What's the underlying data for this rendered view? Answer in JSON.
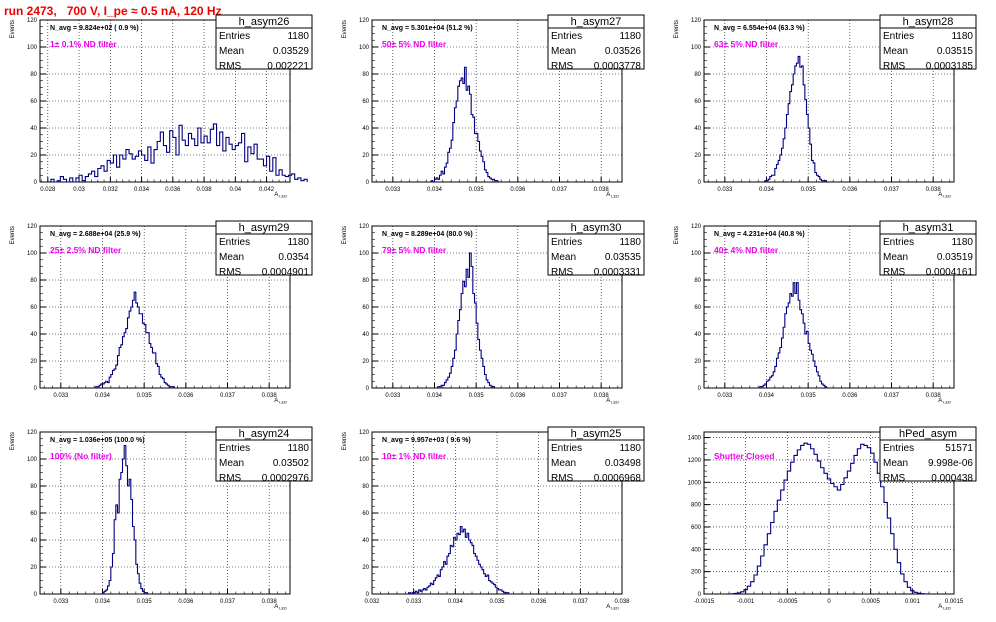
{
  "title": "run 2473,   700 V, I_pe ≈ 0.5 nA, 120 Hz",
  "stats_labels": {
    "entries": "Entries",
    "mean": "Mean",
    "rms": "RMS"
  },
  "chart_data": [
    {
      "type": "histogram",
      "name": "h_asym26",
      "stats": {
        "entries": "1180",
        "mean": "0.03529",
        "rms": "0.002221"
      },
      "navg": "N_avg = 9.824e+02 ( 0.9 %)",
      "filter": "1± 0.1% ND filter",
      "xlabel": "A_LED",
      "ylabel": "Events",
      "xlim": [
        0.0275,
        0.0435
      ],
      "ylim": [
        0,
        120
      ],
      "xticks": [
        "0.028",
        "0.03",
        "0.032",
        "0.034",
        "0.036",
        "0.038",
        "0.04",
        "0.042"
      ],
      "xtick_values": [
        0.028,
        0.03,
        0.032,
        0.034,
        0.036,
        0.038,
        0.04,
        0.042
      ],
      "yticks": [
        0,
        20,
        40,
        60,
        80,
        100,
        120
      ],
      "x_start": 0.0282,
      "bin_width": 0.0002,
      "values": [
        2,
        0,
        1,
        4,
        2,
        0,
        3,
        0,
        3,
        5,
        1,
        4,
        6,
        8,
        4,
        10,
        12,
        8,
        16,
        14,
        20,
        11,
        20,
        17,
        24,
        21,
        17,
        19,
        23,
        20,
        16,
        26,
        14,
        24,
        30,
        37,
        27,
        22,
        38,
        33,
        20,
        42,
        31,
        27,
        36,
        32,
        27,
        40,
        29,
        34,
        29,
        39,
        43,
        27,
        37,
        23,
        33,
        28,
        24,
        27,
        29,
        36,
        15,
        26,
        21,
        28,
        17,
        17,
        12,
        19,
        8,
        18,
        5,
        9,
        5,
        4,
        5,
        6,
        2,
        3,
        1,
        2
      ]
    },
    {
      "type": "histogram",
      "name": "h_asym27",
      "stats": {
        "entries": "1180",
        "mean": "0.03526",
        "rms": "0.0003778"
      },
      "navg": "N_avg = 5.301e+04 (51.2 %)",
      "filter": "50± 5% ND filter",
      "xlabel": "A_LED",
      "ylabel": "Events",
      "xlim": [
        0.0325,
        0.0385
      ],
      "ylim": [
        0,
        120
      ],
      "xticks": [
        "0.033",
        "0.034",
        "0.035",
        "0.036",
        "0.037",
        "0.038"
      ],
      "xtick_values": [
        0.033,
        0.034,
        0.035,
        0.036,
        0.037,
        0.038
      ],
      "yticks": [
        0,
        20,
        40,
        60,
        80,
        100,
        120
      ],
      "x_start": 0.03392,
      "bin_width": 4e-05,
      "values": [
        1,
        0,
        2,
        3,
        2,
        5,
        8,
        6,
        11,
        14,
        22,
        25,
        31,
        44,
        55,
        60,
        71,
        75,
        77,
        73,
        85,
        68,
        71,
        65,
        50,
        48,
        36,
        36,
        30,
        23,
        19,
        15,
        9,
        7,
        4,
        3,
        2,
        2,
        1,
        1
      ]
    },
    {
      "type": "histogram",
      "name": "h_asym28",
      "stats": {
        "entries": "1180",
        "mean": "0.03515",
        "rms": "0.0003185"
      },
      "navg": "N_avg = 6.554e+04 (63.3 %)",
      "filter": "63± 5% ND filter",
      "xlabel": "A_LED",
      "ylabel": "Events",
      "xlim": [
        0.0325,
        0.0385
      ],
      "ylim": [
        0,
        120
      ],
      "xticks": [
        "0.033",
        "0.034",
        "0.035",
        "0.036",
        "0.037",
        "0.038"
      ],
      "xtick_values": [
        0.033,
        0.034,
        0.035,
        0.036,
        0.037,
        0.038
      ],
      "yticks": [
        0,
        20,
        40,
        60,
        80,
        100,
        120
      ],
      "x_start": 0.03396,
      "bin_width": 4e-05,
      "values": [
        1,
        1,
        2,
        4,
        5,
        5,
        10,
        13,
        16,
        20,
        25,
        32,
        40,
        50,
        58,
        67,
        72,
        80,
        86,
        88,
        93,
        85,
        86,
        72,
        61,
        50,
        40,
        28,
        16,
        14,
        7,
        5,
        4,
        2,
        1,
        1,
        1
      ]
    },
    {
      "type": "histogram",
      "name": "h_asym29",
      "stats": {
        "entries": "1180",
        "mean": "0.0354",
        "rms": "0.0004901"
      },
      "navg": "N_avg = 2.688e+04 (25.9 %)",
      "filter": "25± 2.5% ND filter",
      "xlabel": "A_LED",
      "ylabel": "Events",
      "xlim": [
        0.0325,
        0.0385
      ],
      "ylim": [
        0,
        120
      ],
      "xticks": [
        "0.033",
        "0.034",
        "0.035",
        "0.036",
        "0.037",
        "0.038"
      ],
      "xtick_values": [
        0.033,
        0.034,
        0.035,
        0.036,
        0.037,
        0.038
      ],
      "yticks": [
        0,
        20,
        40,
        60,
        80,
        100,
        120
      ],
      "x_start": 0.03384,
      "bin_width": 4e-05,
      "values": [
        1,
        1,
        2,
        3,
        3,
        4,
        5,
        4,
        8,
        10,
        13,
        14,
        17,
        24,
        30,
        32,
        38,
        41,
        44,
        52,
        57,
        60,
        65,
        71,
        63,
        60,
        55,
        55,
        48,
        47,
        41,
        41,
        33,
        30,
        26,
        26,
        18,
        16,
        10,
        8,
        7,
        4,
        3,
        2,
        1,
        1,
        1
      ]
    },
    {
      "type": "histogram",
      "name": "h_asym30",
      "stats": {
        "entries": "1180",
        "mean": "0.03535",
        "rms": "0.0003331"
      },
      "navg": "N_avg = 8.289e+04 (80.0 %)",
      "filter": "79± 5% ND filter",
      "xlabel": "A_LED",
      "ylabel": "Events",
      "xlim": [
        0.0325,
        0.0385
      ],
      "ylim": [
        0,
        120
      ],
      "xticks": [
        "0.033",
        "0.034",
        "0.035",
        "0.036",
        "0.037",
        "0.038"
      ],
      "xtick_values": [
        0.033,
        0.034,
        0.035,
        0.036,
        0.037,
        0.038
      ],
      "yticks": [
        0,
        20,
        40,
        60,
        80,
        100,
        120
      ],
      "x_start": 0.03408,
      "bin_width": 4e-05,
      "values": [
        1,
        1,
        2,
        2,
        4,
        6,
        8,
        11,
        16,
        22,
        28,
        40,
        50,
        58,
        70,
        79,
        75,
        88,
        82,
        100,
        90,
        70,
        63,
        48,
        36,
        28,
        22,
        16,
        10,
        6,
        4,
        2,
        1,
        1
      ]
    },
    {
      "type": "histogram",
      "name": "h_asym31",
      "stats": {
        "entries": "1180",
        "mean": "0.03519",
        "rms": "0.0004161"
      },
      "navg": "N_avg = 4.231e+04 (40.8 %)",
      "filter": "40± 4% ND filter",
      "xlabel": "A_LED",
      "ylabel": "Events",
      "xlim": [
        0.0325,
        0.0385
      ],
      "ylim": [
        0,
        120
      ],
      "xticks": [
        "0.033",
        "0.034",
        "0.035",
        "0.036",
        "0.037",
        "0.038"
      ],
      "xtick_values": [
        0.033,
        0.034,
        0.035,
        0.036,
        0.037,
        0.038
      ],
      "yticks": [
        0,
        20,
        40,
        60,
        80,
        100,
        120
      ],
      "x_start": 0.03384,
      "bin_width": 4e-05,
      "values": [
        1,
        1,
        2,
        3,
        5,
        6,
        8,
        9,
        12,
        16,
        22,
        26,
        30,
        37,
        45,
        55,
        60,
        63,
        70,
        68,
        78,
        70,
        78,
        65,
        58,
        55,
        48,
        40,
        42,
        33,
        28,
        25,
        20,
        16,
        12,
        9,
        5,
        3,
        2,
        1
      ]
    },
    {
      "type": "histogram",
      "name": "h_asym24",
      "stats": {
        "entries": "1180",
        "mean": "0.03502",
        "rms": "0.0002976"
      },
      "navg": "N_avg = 1.036e+05 (100.0 %)",
      "filter": "100% (No filter)",
      "xlabel": "A_LED",
      "ylabel": "Events",
      "xlim": [
        0.0325,
        0.0385
      ],
      "ylim": [
        0,
        120
      ],
      "xticks": [
        "0.033",
        "0.034",
        "0.035",
        "0.036",
        "0.037",
        "0.038"
      ],
      "xtick_values": [
        0.033,
        0.034,
        0.035,
        0.036,
        0.037,
        0.038
      ],
      "yticks": [
        0,
        20,
        40,
        60,
        80,
        100,
        120
      ],
      "x_start": 0.034,
      "bin_width": 4e-05,
      "values": [
        1,
        2,
        3,
        6,
        10,
        20,
        30,
        55,
        66,
        60,
        85,
        90,
        100,
        110,
        95,
        80,
        85,
        70,
        50,
        40,
        22,
        15,
        8,
        4,
        2,
        1,
        1
      ]
    },
    {
      "type": "histogram",
      "name": "h_asym25",
      "stats": {
        "entries": "1180",
        "mean": "0.03498",
        "rms": "0.0006968"
      },
      "navg": "N_avg = 9.957e+03 ( 9.6 %)",
      "filter": "10± 1% ND filter",
      "xlabel": "A_LED",
      "ylabel": "Events",
      "xlim": [
        0.032,
        0.038
      ],
      "ylim": [
        0,
        120
      ],
      "xticks": [
        "0.032",
        "0.033",
        "0.034",
        "0.035",
        "0.036",
        "0.037",
        "0.038"
      ],
      "xtick_values": [
        0.032,
        0.033,
        0.034,
        0.035,
        0.036,
        0.037,
        0.038
      ],
      "yticks": [
        0,
        20,
        40,
        60,
        80,
        100,
        120
      ],
      "x_start": 0.03288,
      "bin_width": 4e-05,
      "values": [
        1,
        0,
        1,
        1,
        2,
        1,
        3,
        2,
        3,
        4,
        3,
        5,
        6,
        8,
        7,
        10,
        12,
        14,
        13,
        18,
        20,
        24,
        22,
        28,
        30,
        36,
        35,
        42,
        40,
        45,
        44,
        50,
        46,
        48,
        42,
        45,
        40,
        38,
        36,
        30,
        28,
        25,
        22,
        20,
        18,
        15,
        13,
        14,
        10,
        9,
        8,
        7,
        5,
        4,
        3,
        3,
        2,
        1,
        1,
        1
      ]
    },
    {
      "type": "histogram",
      "name": "hPed_asym",
      "stats": {
        "entries": "51571",
        "mean": "9.998e-06",
        "rms": "0.000438"
      },
      "navg": "",
      "filter": "Shutter Closed",
      "xlabel": "A_LED",
      "ylabel": "",
      "xlim": [
        -0.0015,
        0.0015
      ],
      "ylim": [
        0,
        1450
      ],
      "xticks": [
        "-0.0015",
        "-0.001",
        "-0.0005",
        "0",
        "0.0005",
        "0.001",
        "0.0015"
      ],
      "xtick_values": [
        -0.0015,
        -0.001,
        -0.0005,
        0,
        0.0005,
        0.001,
        0.0015
      ],
      "yticks": [
        0,
        200,
        400,
        600,
        800,
        1000,
        1200,
        1400
      ],
      "x_start": -0.00118,
      "bin_width": 4e-05,
      "values": [
        2,
        5,
        10,
        20,
        40,
        70,
        110,
        170,
        250,
        340,
        440,
        540,
        640,
        740,
        840,
        930,
        1020,
        1100,
        1180,
        1240,
        1290,
        1330,
        1350,
        1340,
        1300,
        1250,
        1190,
        1130,
        1080,
        1030,
        990,
        960,
        930,
        980,
        1040,
        1100,
        1170,
        1240,
        1300,
        1340,
        1330,
        1310,
        1260,
        1180,
        1080,
        960,
        820,
        680,
        540,
        400,
        280,
        180,
        110,
        60,
        30,
        15,
        7,
        3,
        1
      ]
    }
  ]
}
